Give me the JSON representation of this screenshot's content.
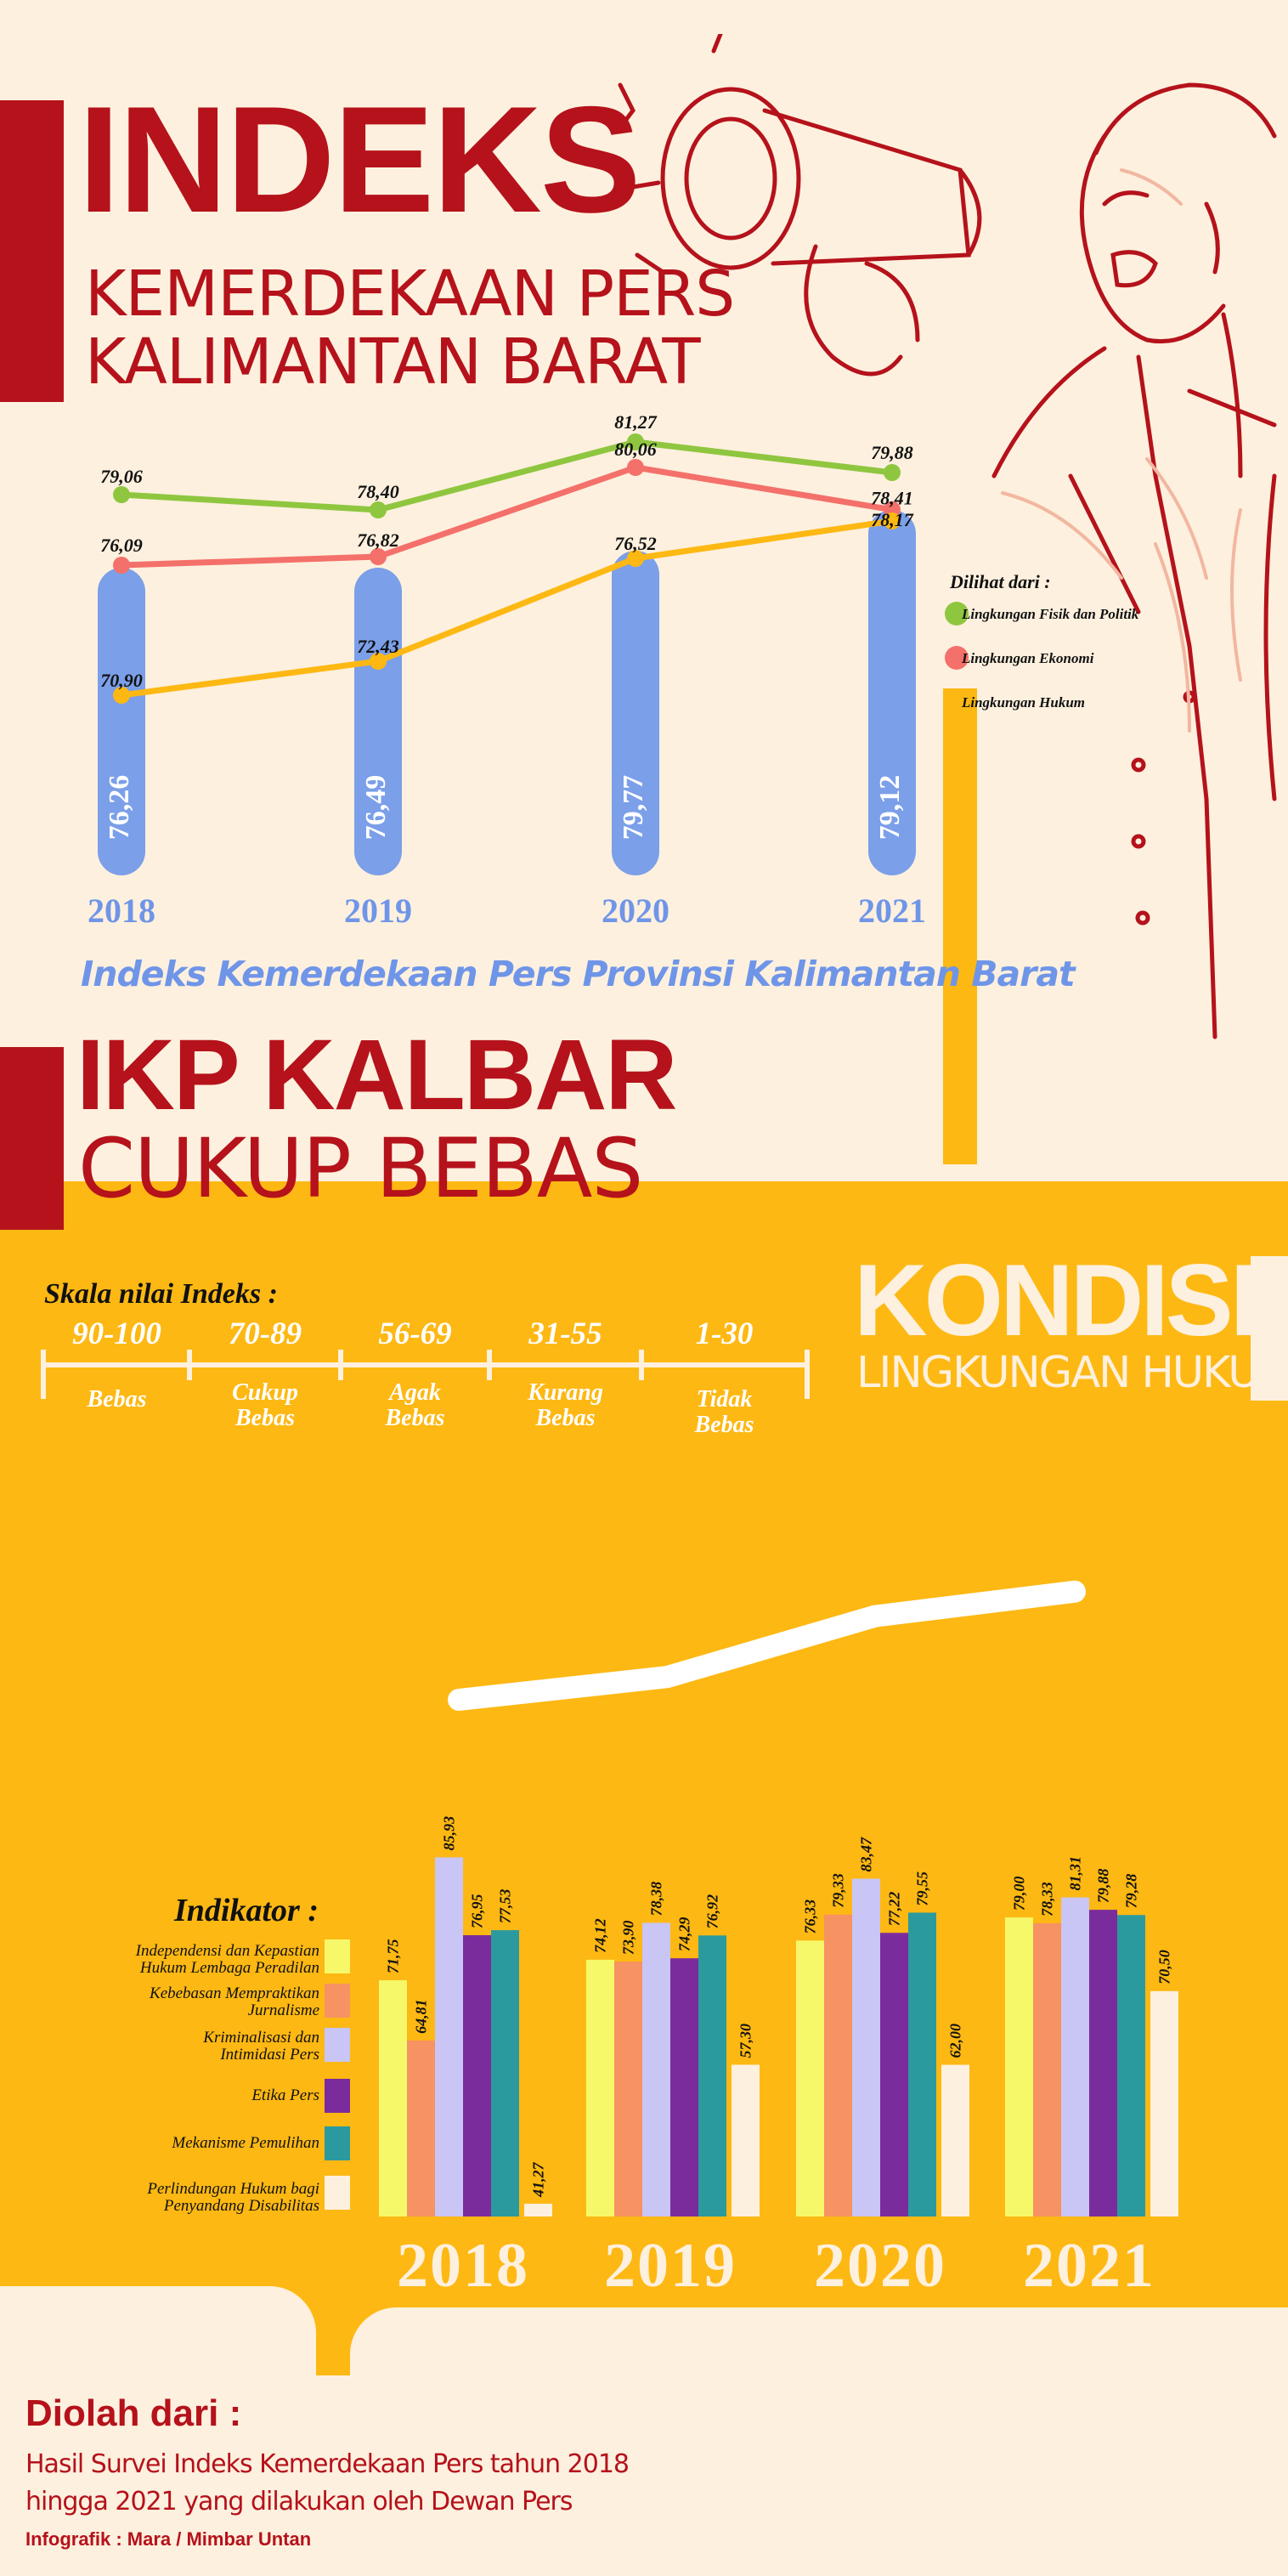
{
  "header": {
    "title": "INDEKS",
    "subtitle_1": "KEMERDEKAAN PERS",
    "subtitle_2": "KALIMANTAN BARAT"
  },
  "chart_data": [
    {
      "type": "bar+line",
      "title": "Indeks Kemerdekaan Pers Provinsi Kalimantan Barat",
      "categories": [
        "2018",
        "2019",
        "2020",
        "2021"
      ],
      "bar_values": [
        76.26,
        76.49,
        79.77,
        79.12
      ],
      "bar_labels": [
        "76,26",
        "76,49",
        "79,77",
        "79,12"
      ],
      "bar_color": "#7b9fe8",
      "series": [
        {
          "name": "Lingkungan Fisik dan Politik",
          "color": "#8fc63f",
          "values": [
            79.06,
            78.4,
            81.27,
            79.88
          ],
          "labels": [
            "79,06",
            "78,40",
            "81,27",
            "79,88"
          ]
        },
        {
          "name": "Lingkungan Ekonomi",
          "color": "#f4706a",
          "values": [
            76.09,
            76.82,
            80.06,
            78.41
          ],
          "labels": [
            "76,09",
            "76,82",
            "80,06",
            "78,41"
          ]
        },
        {
          "name": "Lingkungan Hukum",
          "color": "#fdb813",
          "values": [
            70.9,
            72.43,
            76.52,
            78.17
          ],
          "labels": [
            "70,90",
            "72,43",
            "76,52",
            "78,17"
          ]
        }
      ],
      "legend_title": "Dilihat dari :",
      "legend_position": "right"
    },
    {
      "type": "bar",
      "title": "KONDISI LINGKUNGAN HUKUM",
      "categories": [
        "2018",
        "2019",
        "2020",
        "2021"
      ],
      "series": [
        {
          "name": "Independensi dan Kepastian Hukum Lembaga Peradilan",
          "color": "#f6f86a",
          "values": [
            71.75,
            74.12,
            76.33,
            79.0
          ],
          "labels": [
            "71,75",
            "74,12",
            "76,33",
            "79,00"
          ]
        },
        {
          "name": "Kebebasan Mempraktikan Jurnalisme",
          "color": "#f79262",
          "values": [
            64.81,
            73.9,
            79.33,
            78.33
          ],
          "labels": [
            "64,81",
            "73,90",
            "79,33",
            "78,33"
          ]
        },
        {
          "name": "Kriminalisasi dan Intimidasi Pers",
          "color": "#c9c5f4",
          "values": [
            85.93,
            78.38,
            83.47,
            81.31
          ],
          "labels": [
            "85,93",
            "78,38",
            "83,47",
            "81,31"
          ]
        },
        {
          "name": "Etika Pers",
          "color": "#7a2c9c",
          "values": [
            76.95,
            74.29,
            77.22,
            79.88
          ],
          "labels": [
            "76,95",
            "74,29",
            "77,22",
            "79,88"
          ]
        },
        {
          "name": "Mekanisme Pemulihan",
          "color": "#2b9a9e",
          "values": [
            77.53,
            76.92,
            79.55,
            79.28
          ],
          "labels": [
            "77,53",
            "76,92",
            "79,55",
            "79,28"
          ]
        },
        {
          "name": "Perlindungan Hukum bagi Penyandang Disabilitas",
          "color": "#fdf0de",
          "values": [
            41.27,
            57.3,
            62.0,
            70.5
          ],
          "labels": [
            "41,27",
            "57,30",
            "62,00",
            "70,50"
          ]
        }
      ],
      "legend_title": "Indikator :",
      "legend_position": "left"
    }
  ],
  "ikp": {
    "line1": "IKP KALBAR",
    "line2": "CUKUP BEBAS"
  },
  "kondisi": {
    "line1": "KONDISI",
    "line2": "LINGKUNGAN HUKUM"
  },
  "scale": {
    "title": "Skala nilai Indeks :",
    "items": [
      {
        "range": "90-100",
        "label1": "Bebas",
        "label2": ""
      },
      {
        "range": "70-89",
        "label1": "Cukup",
        "label2": "Bebas"
      },
      {
        "range": "56-69",
        "label1": "Agak",
        "label2": "Bebas"
      },
      {
        "range": "31-55",
        "label1": "Kurang",
        "label2": "Bebas"
      },
      {
        "range": "1-30",
        "label1": "Tidak",
        "label2": "Bebas"
      }
    ]
  },
  "source": {
    "title": "Diolah dari :",
    "line1": "Hasil Survei Indeks Kemerdekaan Pers tahun  2018",
    "line2": "hingga  2021 yang dilakukan oleh Dewan Pers",
    "credit": "Infografik : Mara / Mimbar Untan"
  }
}
